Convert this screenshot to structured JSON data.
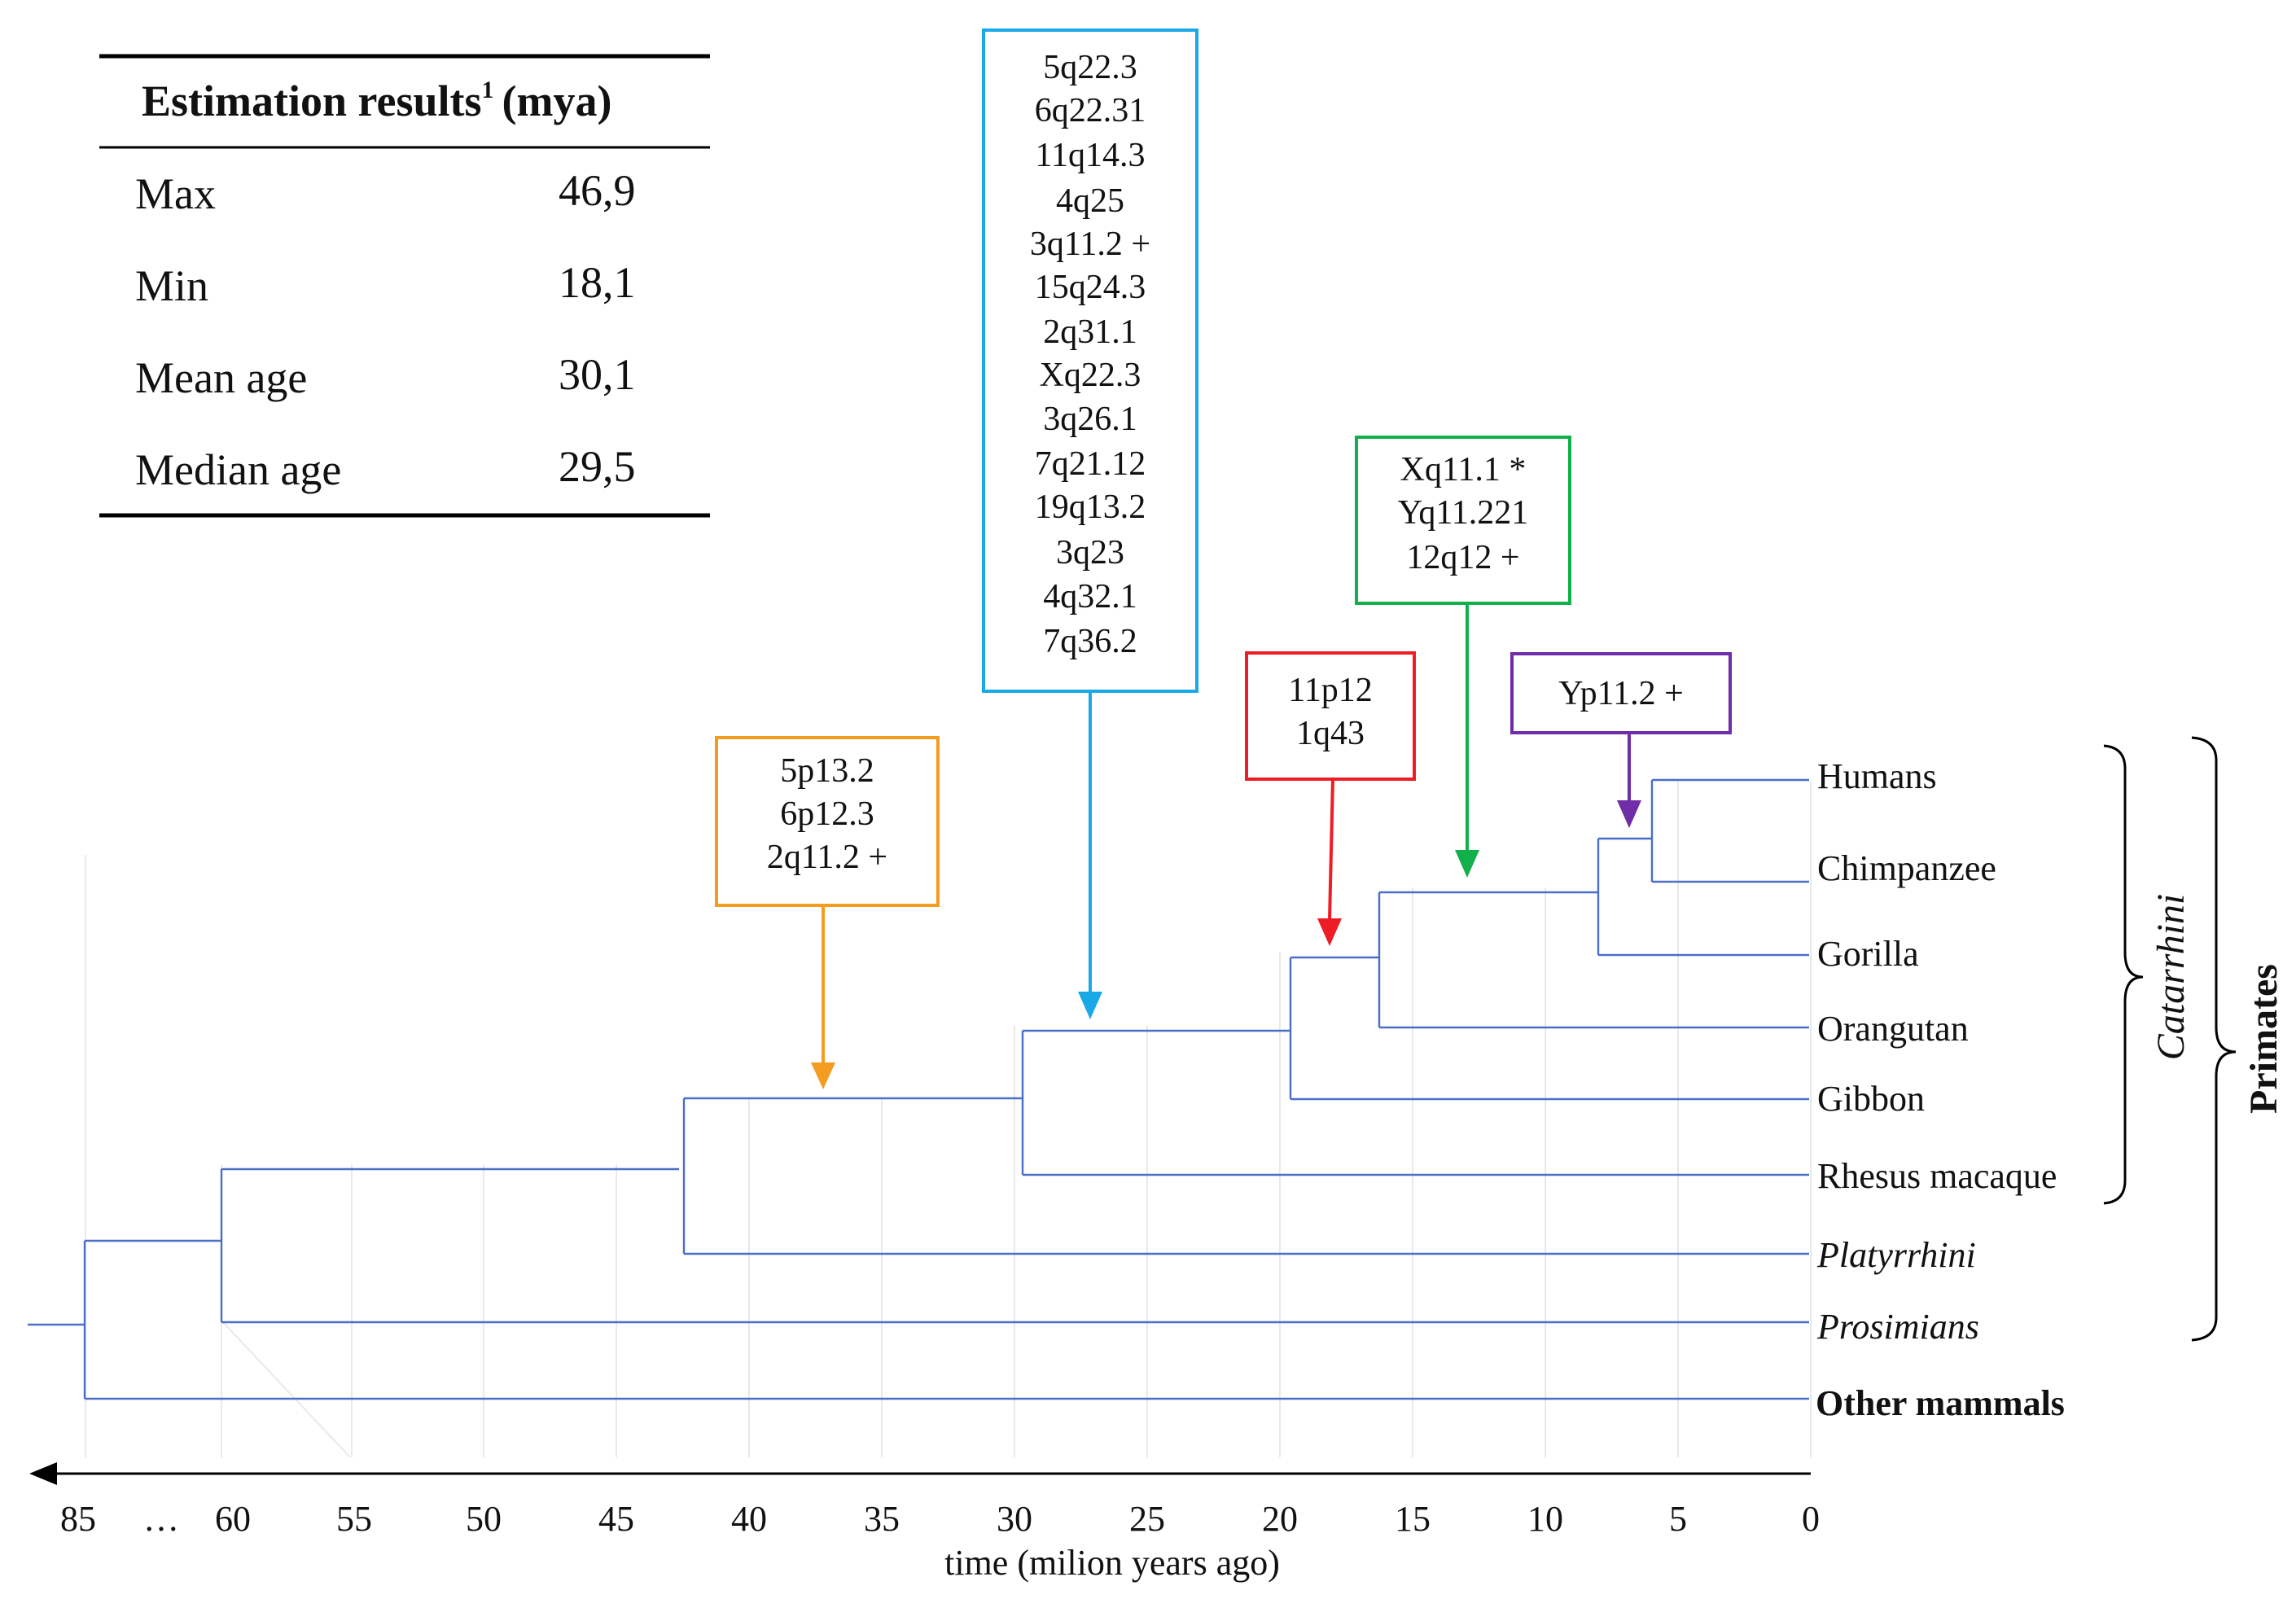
{
  "table": {
    "title_main": "Estimation results",
    "title_sup": "1",
    "title_unit": "(mya)",
    "rows": [
      {
        "label": "Max",
        "value": "46,9"
      },
      {
        "label": "Min",
        "value": "18,1"
      },
      {
        "label": "Mean age",
        "value": "30,1"
      },
      {
        "label": "Median age",
        "value": "29,5"
      }
    ]
  },
  "event_boxes": {
    "orange": {
      "color": "#f39c1f",
      "lines": [
        "5p13.2",
        "6p12.3",
        "2q11.2 +"
      ],
      "age_mya": 37.5
    },
    "blue": {
      "color": "#19a9e6",
      "lines": [
        "5q22.3",
        "6q22.31",
        "11q14.3",
        "4q25",
        "3q11.2 +",
        "15q24.3",
        "2q31.1",
        "Xq22.3",
        "3q26.1",
        "7q21.12",
        "19q13.2",
        "3q23",
        "4q32.1",
        "7q36.2"
      ],
      "age_mya": 27.5
    },
    "red": {
      "color": "#ee1c25",
      "lines": [
        "11p12",
        "1q43"
      ],
      "age_mya": 18.0
    },
    "green": {
      "color": "#12b04b",
      "lines": [
        "Xq11.1 *",
        "Yq11.221",
        "12q12 +"
      ],
      "age_mya": 13.0
    },
    "purple": {
      "color": "#6f2da8",
      "lines": [
        "Yp11.2 +"
      ],
      "age_mya": 6.5
    }
  },
  "leaves": {
    "humans": {
      "label": "Humans",
      "color": "#111111"
    },
    "chimpanzee": {
      "label": "Chimpanzee",
      "color": "#6f3fa0"
    },
    "gorilla": {
      "label": "Gorilla",
      "color": "#12a64a"
    },
    "orangutan": {
      "label": "Orangutan",
      "color": "#ee1c25"
    },
    "gibbon": {
      "label": "Gibbon",
      "color": "#19a9e6"
    },
    "rhesus": {
      "label": "Rhesus macaque",
      "color": "#f39c1f"
    },
    "platyrrhini": {
      "label": "Platyrrhini",
      "color": "#111111"
    },
    "prosimians": {
      "label": "Prosimians",
      "color": "#111111"
    },
    "other_mammals": {
      "label": "Other mammals",
      "color": "#111111"
    }
  },
  "tree_node_ages_mya": {
    "human_chimp": 6.0,
    "hominini_gorilla": 8.0,
    "hominidae": 16.3,
    "hominoidea": 19.8,
    "catarrhini": 29.8,
    "anthropoidea": 42.5,
    "primates": 60,
    "root": 85
  },
  "clades": {
    "catarrhini": "Catarrhini",
    "primates": "Primates"
  },
  "axis": {
    "ticks": [
      "85",
      "…",
      "60",
      "55",
      "50",
      "45",
      "40",
      "35",
      "30",
      "25",
      "20",
      "15",
      "10",
      "5",
      "0"
    ],
    "label": "time (milion years ago)"
  }
}
